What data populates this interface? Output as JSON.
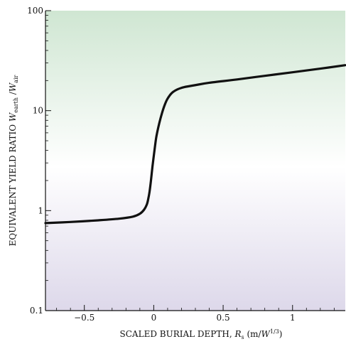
{
  "chart_data": {
    "type": "line",
    "xlabel": {
      "main": "SCALED BURIAL DEPTH, ",
      "var": "R",
      "var_sub": "s",
      "units_open": " (m/",
      "units_var": "W",
      "units_sup": "1/3",
      "units_close": ")"
    },
    "ylabel": {
      "main": "EQUIVALENT YIELD RATIO ",
      "var1": "W",
      "var1_sub": "earth",
      "sep": " /",
      "var2": "W",
      "var2_sub": "air"
    },
    "xlim": [
      -0.78,
      1.38
    ],
    "ylim": [
      0.1,
      100
    ],
    "yscale": "log",
    "xticks": [
      -0.5,
      0,
      0.5,
      1
    ],
    "xtick_labels": [
      "−0.5",
      "0",
      "0.5",
      "1"
    ],
    "yticks": [
      0.1,
      1,
      10,
      100
    ],
    "ytick_labels": [
      "0.1",
      "1",
      "10",
      "100"
    ],
    "grid": false,
    "series": [
      {
        "color": "#111111",
        "x": [
          -0.78,
          -0.6,
          -0.4,
          -0.25,
          -0.15,
          -0.1,
          -0.07,
          -0.05,
          -0.04,
          -0.03,
          -0.02,
          -0.01,
          0,
          0.01,
          0.02,
          0.04,
          0.06,
          0.08,
          0.1,
          0.13,
          0.17,
          0.22,
          0.3,
          0.4,
          0.6,
          0.8,
          1.0,
          1.2,
          1.38
        ],
        "y": [
          0.75,
          0.77,
          0.8,
          0.83,
          0.87,
          0.93,
          1.02,
          1.15,
          1.3,
          1.55,
          2.0,
          2.7,
          3.5,
          4.5,
          5.6,
          7.5,
          9.5,
          11.5,
          13.2,
          15.0,
          16.3,
          17.2,
          18.0,
          19.0,
          20.5,
          22.3,
          24.2,
          26.3,
          28.5
        ]
      }
    ],
    "background_gradient": {
      "top": "#cfe6d2",
      "middle": "#ffffff",
      "bottom": "#ddd8ea"
    }
  }
}
